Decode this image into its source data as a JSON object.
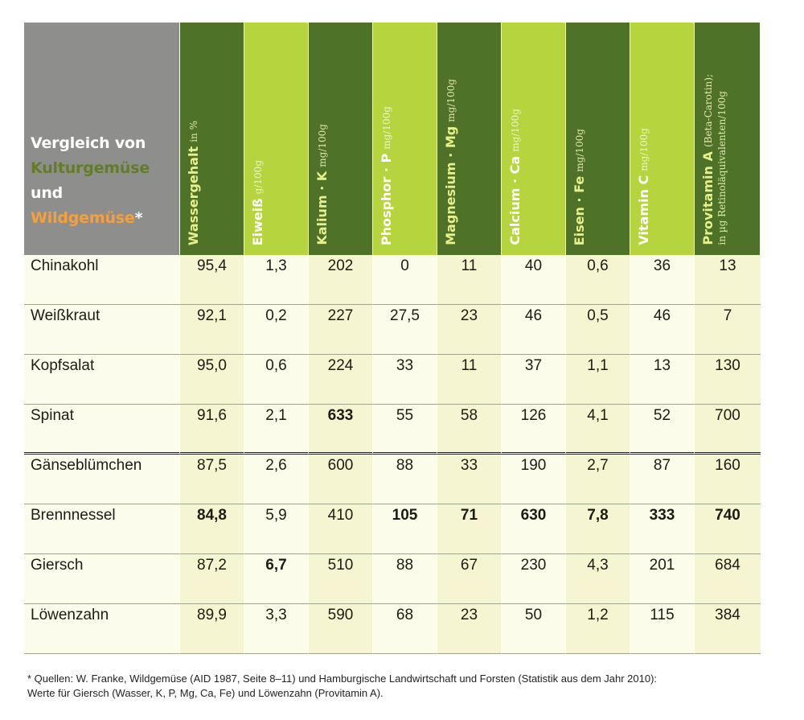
{
  "title": {
    "line1": "Vergleich von",
    "line2": "Kulturgemüse",
    "line3_a": "und ",
    "line3_b": "Wildgemüse",
    "line3_c": "*"
  },
  "columns": [
    {
      "name": "Wassergehalt",
      "unit": "in %",
      "style": "dark"
    },
    {
      "name": "Eiweiß",
      "unit": "g/100g",
      "style": "light"
    },
    {
      "name": "Kalium · K",
      "unit": "mg/100g",
      "style": "dark"
    },
    {
      "name": "Phosphor · P",
      "unit": "mg/100g",
      "style": "light"
    },
    {
      "name": "Magnesium · Mg",
      "unit": "mg/100g",
      "style": "dark"
    },
    {
      "name": "Calcium · Ca",
      "unit": "mg/100g",
      "style": "light"
    },
    {
      "name": "Eisen · Fe",
      "unit": "mg/100g",
      "style": "dark"
    },
    {
      "name": "Vitamin C",
      "unit": "mg/100g",
      "style": "light"
    },
    {
      "name": "Provitamin A",
      "unit": "(Beta-Carotin);",
      "sub": "in µg Retinoläquivalenten/100g",
      "style": "dark"
    }
  ],
  "rows": [
    {
      "name": "Chinakohl",
      "values": [
        "95,4",
        "1,3",
        "202",
        "0",
        "11",
        "40",
        "0,6",
        "36",
        "13"
      ],
      "bold": []
    },
    {
      "name": "Weißkraut",
      "values": [
        "92,1",
        "0,2",
        "227",
        "27,5",
        "23",
        "46",
        "0,5",
        "46",
        "7"
      ],
      "bold": []
    },
    {
      "name": "Kopfsalat",
      "values": [
        "95,0",
        "0,6",
        "224",
        "33",
        "11",
        "37",
        "1,1",
        "13",
        "130"
      ],
      "bold": []
    },
    {
      "name": "Spinat",
      "values": [
        "91,6",
        "2,1",
        "633",
        "55",
        "58",
        "126",
        "4,1",
        "52",
        "700"
      ],
      "bold": [
        2
      ]
    },
    {
      "name": "Gänseblümchen",
      "values": [
        "87,5",
        "2,6",
        "600",
        "88",
        "33",
        "190",
        "2,7",
        "87",
        "160"
      ],
      "bold": []
    },
    {
      "name": "Brennnessel",
      "values": [
        "84,8",
        "5,9",
        "410",
        "105",
        "71",
        "630",
        "7,8",
        "333",
        "740"
      ],
      "bold": [
        0,
        3,
        4,
        5,
        6,
        7,
        8
      ]
    },
    {
      "name": "Giersch",
      "values": [
        "87,2",
        "6,7",
        "510",
        "88",
        "67",
        "230",
        "4,3",
        "201",
        "684"
      ],
      "bold": [
        1
      ]
    },
    {
      "name": "Löwenzahn",
      "values": [
        "89,9",
        "3,3",
        "590",
        "68",
        "23",
        "50",
        "1,2",
        "115",
        "384"
      ],
      "bold": []
    }
  ],
  "footnote": {
    "line1": "* Quellen: W. Franke, Wildgemüse (AID 1987, Seite 8–11) und Hamburgische Landwirtschaft und Forsten (Statistik aus dem Jahr 2010):",
    "line2": "Werte für Giersch (Wasser, K, P, Mg, Ca, Fe) und Löwenzahn (Provitamin A)."
  }
}
